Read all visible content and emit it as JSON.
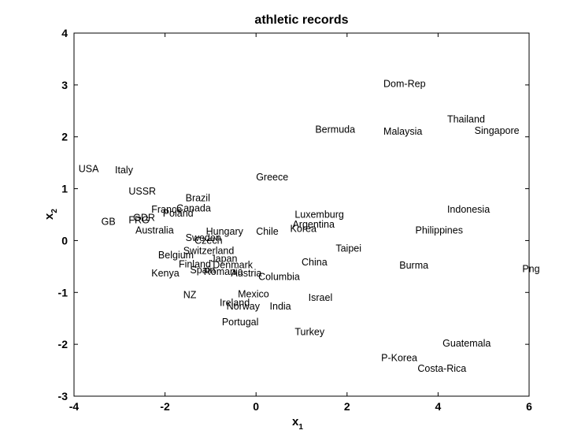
{
  "chart_data": {
    "type": "scatter",
    "title": "athletic records",
    "xlabel": {
      "base": "x",
      "sub": "1"
    },
    "ylabel": {
      "base": "x",
      "sub": "2"
    },
    "xlim": [
      -4,
      6
    ],
    "ylim": [
      -3,
      4
    ],
    "xticks": [
      -4,
      -2,
      0,
      2,
      4,
      6
    ],
    "yticks": [
      -3,
      -2,
      -1,
      0,
      1,
      2,
      3,
      4
    ],
    "grid": false,
    "points": [
      {
        "label": "Dom-Rep",
        "x": 2.8,
        "y": 3.02
      },
      {
        "label": "Thailand",
        "x": 4.2,
        "y": 2.34
      },
      {
        "label": "Bermuda",
        "x": 1.3,
        "y": 2.14
      },
      {
        "label": "Malaysia",
        "x": 2.8,
        "y": 2.1
      },
      {
        "label": "Singapore",
        "x": 4.8,
        "y": 2.12
      },
      {
        "label": "USA",
        "x": -3.9,
        "y": 1.38
      },
      {
        "label": "Italy",
        "x": -3.1,
        "y": 1.36
      },
      {
        "label": "Greece",
        "x": 0.0,
        "y": 1.22
      },
      {
        "label": "USSR",
        "x": -2.8,
        "y": 0.95
      },
      {
        "label": "Brazil",
        "x": -1.55,
        "y": 0.82
      },
      {
        "label": "France",
        "x": -2.3,
        "y": 0.6
      },
      {
        "label": "Canada",
        "x": -1.75,
        "y": 0.62
      },
      {
        "label": "Poland",
        "x": -2.05,
        "y": 0.52
      },
      {
        "label": "Indonesia",
        "x": 4.2,
        "y": 0.6
      },
      {
        "label": "Luxemburg",
        "x": 0.85,
        "y": 0.5
      },
      {
        "label": "GB",
        "x": -3.4,
        "y": 0.36
      },
      {
        "label": "FRG",
        "x": -2.8,
        "y": 0.39
      },
      {
        "label": "GDR",
        "x": -2.7,
        "y": 0.44
      },
      {
        "label": "Argentina",
        "x": 0.8,
        "y": 0.31
      },
      {
        "label": "Korea",
        "x": 0.75,
        "y": 0.23
      },
      {
        "label": "Australia",
        "x": -2.65,
        "y": 0.2
      },
      {
        "label": "Philippines",
        "x": 3.5,
        "y": 0.2
      },
      {
        "label": "Hungary",
        "x": -1.1,
        "y": 0.17
      },
      {
        "label": "Chile",
        "x": 0.0,
        "y": 0.17
      },
      {
        "label": "Sweden",
        "x": -1.55,
        "y": 0.05
      },
      {
        "label": "Czech",
        "x": -1.35,
        "y": 0.0
      },
      {
        "label": "Taipei",
        "x": 1.75,
        "y": -0.15
      },
      {
        "label": "Switzerland",
        "x": -1.6,
        "y": -0.2
      },
      {
        "label": "Belgium",
        "x": -2.15,
        "y": -0.28
      },
      {
        "label": "Japan",
        "x": -1.0,
        "y": -0.35
      },
      {
        "label": "China",
        "x": 1.0,
        "y": -0.42
      },
      {
        "label": "Finland",
        "x": -1.7,
        "y": -0.46
      },
      {
        "label": "Denmark",
        "x": -0.95,
        "y": -0.47
      },
      {
        "label": "Burma",
        "x": 3.15,
        "y": -0.48
      },
      {
        "label": "Png",
        "x": 5.85,
        "y": -0.55
      },
      {
        "label": "Spain",
        "x": -1.45,
        "y": -0.57
      },
      {
        "label": "Romania",
        "x": -1.15,
        "y": -0.6
      },
      {
        "label": "Kenya",
        "x": -2.3,
        "y": -0.63
      },
      {
        "label": "Austria",
        "x": -0.55,
        "y": -0.63
      },
      {
        "label": "Columbia",
        "x": 0.05,
        "y": -0.7
      },
      {
        "label": "NZ",
        "x": -1.6,
        "y": -1.05
      },
      {
        "label": "Mexico",
        "x": -0.4,
        "y": -1.03
      },
      {
        "label": "Israel",
        "x": 1.15,
        "y": -1.1
      },
      {
        "label": "Ireland",
        "x": -0.8,
        "y": -1.2
      },
      {
        "label": "Norway",
        "x": -0.65,
        "y": -1.27
      },
      {
        "label": "India",
        "x": 0.3,
        "y": -1.27
      },
      {
        "label": "Portugal",
        "x": -0.75,
        "y": -1.57
      },
      {
        "label": "Turkey",
        "x": 0.85,
        "y": -1.76
      },
      {
        "label": "Guatemala",
        "x": 4.1,
        "y": -1.98
      },
      {
        "label": "P-Korea",
        "x": 2.75,
        "y": -2.26
      },
      {
        "label": "Costa-Rica",
        "x": 3.55,
        "y": -2.47
      }
    ]
  }
}
